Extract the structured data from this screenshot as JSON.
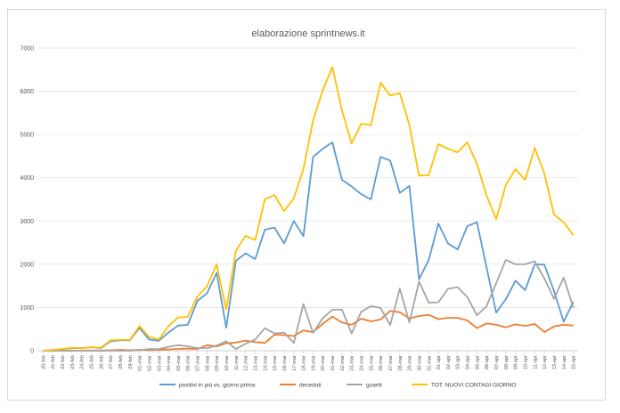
{
  "chart_data": {
    "type": "line",
    "title": "elaborazione sprintnews.it",
    "xlabel": "",
    "ylabel": "",
    "ylim": [
      0,
      7000
    ],
    "yticks": [
      0,
      1000,
      2000,
      3000,
      4000,
      5000,
      6000,
      7000
    ],
    "grid": "horizontal",
    "legend_position": "bottom",
    "categories": [
      "20-feb",
      "21-feb",
      "22-feb",
      "23-feb",
      "24-feb",
      "25-feb",
      "26-feb",
      "27-feb",
      "28-feb",
      "29-feb",
      "01-mar",
      "02-mar",
      "03-mar",
      "04-mar",
      "05-mar",
      "06-mar",
      "07-mar",
      "08-mar",
      "09-mar",
      "10-mar",
      "11-mar",
      "12-mar",
      "13-mar",
      "14-mar",
      "15-mar",
      "16-mar",
      "17-mar",
      "18-mar",
      "19-mar",
      "20-mar",
      "21-mar",
      "22-mar",
      "23-mar",
      "24-mar",
      "25-mar",
      "26-mar",
      "27-mar",
      "28-mar",
      "29-mar",
      "30-mar",
      "31-mar",
      "01-apr",
      "02-apr",
      "03-apr",
      "04-apr",
      "05-apr",
      "06-apr",
      "07-apr",
      "08-apr",
      "09-apr",
      "10-apr",
      "11-apr",
      "12-apr",
      "13-apr",
      "14-apr",
      "15-apr"
    ],
    "series": [
      {
        "name": "positivi in più vs. giorno prima",
        "color": "#5b9bd5",
        "values": [
          0,
          15,
          40,
          60,
          60,
          80,
          60,
          220,
          240,
          240,
          530,
          260,
          230,
          420,
          580,
          600,
          1150,
          1330,
          1800,
          530,
          2080,
          2250,
          2120,
          2800,
          2850,
          2480,
          3000,
          2650,
          4480,
          4670,
          4820,
          3950,
          3800,
          3620,
          3500,
          4480,
          4400,
          3650,
          3810,
          1650,
          2100,
          2940,
          2480,
          2340,
          2880,
          2970,
          1930,
          880,
          1190,
          1620,
          1400,
          2000,
          1990,
          1380,
          670,
          1130
        ]
      },
      {
        "name": "deceduti",
        "color": "#ed7d31",
        "values": [
          0,
          0,
          5,
          0,
          5,
          5,
          5,
          10,
          20,
          10,
          20,
          15,
          25,
          30,
          40,
          50,
          40,
          130,
          100,
          170,
          190,
          230,
          200,
          180,
          370,
          360,
          340,
          470,
          430,
          620,
          790,
          650,
          600,
          740,
          680,
          720,
          920,
          890,
          750,
          800,
          830,
          730,
          760,
          760,
          700,
          520,
          630,
          600,
          540,
          610,
          570,
          620,
          430,
          560,
          600,
          580
        ]
      },
      {
        "name": "guariti",
        "color": "#a5a5a5",
        "values": [
          0,
          0,
          0,
          0,
          0,
          0,
          0,
          0,
          0,
          0,
          10,
          40,
          40,
          90,
          130,
          100,
          60,
          60,
          120,
          220,
          40,
          160,
          260,
          520,
          400,
          420,
          180,
          1080,
          410,
          750,
          950,
          950,
          400,
          900,
          1030,
          990,
          590,
          1440,
          650,
          1600,
          1110,
          1120,
          1430,
          1470,
          1240,
          820,
          1030,
          1560,
          2100,
          2000,
          2000,
          2070,
          1670,
          1200,
          1690,
          1000
        ]
      },
      {
        "name": "TOT. NUOVI CONTAGI GIORNO",
        "color": "#ffc000",
        "values": [
          0,
          20,
          40,
          70,
          60,
          80,
          70,
          240,
          250,
          250,
          570,
          320,
          260,
          570,
          770,
          780,
          1250,
          1490,
          2000,
          950,
          2310,
          2660,
          2560,
          3500,
          3600,
          3230,
          3520,
          4200,
          5320,
          6020,
          6560,
          5560,
          4790,
          5250,
          5220,
          6200,
          5900,
          5960,
          5220,
          4050,
          4060,
          4780,
          4670,
          4590,
          4820,
          4320,
          3590,
          3040,
          3830,
          4200,
          3950,
          4690,
          4100,
          3150,
          2970,
          2670
        ]
      }
    ]
  }
}
